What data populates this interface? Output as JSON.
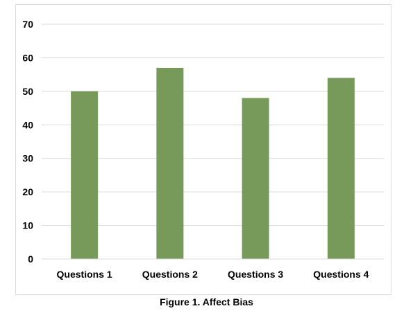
{
  "chart_data": {
    "type": "bar",
    "title": "",
    "xlabel": "",
    "ylabel": "",
    "categories": [
      "Questions 1",
      "Questions 2",
      "Questions 3",
      "Questions 4"
    ],
    "values": [
      50,
      57,
      48,
      54
    ],
    "ylim": [
      0,
      70
    ],
    "yticks": [
      0,
      10,
      20,
      30,
      40,
      50,
      60,
      70
    ],
    "grid": true,
    "legend": "none",
    "bar_color": "#77995a",
    "grid_color": "#d9d9d9"
  },
  "caption": "Figure 1. Affect Bias"
}
